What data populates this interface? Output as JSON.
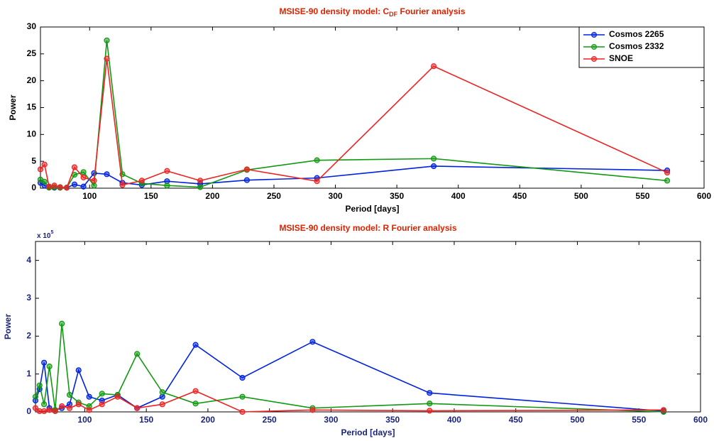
{
  "chart_data": [
    {
      "type": "line",
      "title": "MSISE-90 density model: C",
      "title_sub": "DF",
      "title_end": " Fourier analysis",
      "x_label": "Period [days]",
      "y_label": "Power",
      "x": [
        60,
        63.3,
        67,
        71.3,
        76,
        81.4,
        87.7,
        95,
        103.6,
        114,
        126.7,
        142.5,
        163,
        190,
        228,
        285,
        380,
        570
      ],
      "series": [
        {
          "name": "Cosmos 2265",
          "color": "#0022dd",
          "values": [
            1.0,
            0.5,
            0.2,
            0.1,
            0.1,
            0.1,
            0.7,
            0.3,
            2.8,
            2.6,
            1.0,
            0.6,
            1.3,
            0.8,
            1.5,
            1.9,
            4.1,
            3.3
          ]
        },
        {
          "name": "Cosmos 2332",
          "color": "#119911",
          "values": [
            1.6,
            1.2,
            0.1,
            0.2,
            0.1,
            0.1,
            2.5,
            3.0,
            0.5,
            27.5,
            2.6,
            0.9,
            0.5,
            0.2,
            3.4,
            5.2,
            5.5,
            1.4
          ]
        },
        {
          "name": "SNOE",
          "color": "#ee2222",
          "values": [
            3.5,
            4.4,
            0.3,
            0.5,
            0.2,
            0.1,
            3.9,
            2.0,
            1.4,
            24.1,
            0.6,
            1.4,
            3.2,
            1.4,
            3.5,
            1.3,
            22.7,
            2.9
          ]
        }
      ],
      "xlim": [
        60,
        600
      ],
      "xticks": [
        100,
        150,
        200,
        250,
        300,
        350,
        400,
        450,
        500,
        550,
        600
      ],
      "ylim": [
        0,
        30
      ],
      "yticks": [
        0,
        5,
        10,
        15,
        20,
        25,
        30
      ],
      "legend": "upper-right",
      "grid": false
    },
    {
      "type": "line",
      "title": "MSISE-90 density model: R Fourier analysis",
      "x_label": "Period [days]",
      "y_label": "Power",
      "y_multiplier": "x 10",
      "y_multiplier_exp": "5",
      "x": [
        60,
        63.3,
        67,
        71.3,
        76,
        81.4,
        87.7,
        95,
        103.6,
        114,
        126.7,
        142.5,
        163,
        190,
        228,
        285,
        380,
        570
      ],
      "series": [
        {
          "name": "Cosmos 2265",
          "color": "#0022dd",
          "values": [
            0.3,
            0.6,
            1.3,
            0.1,
            0.05,
            0.1,
            0.2,
            1.1,
            0.4,
            0.3,
            0.45,
            0.1,
            0.4,
            1.77,
            0.9,
            1.85,
            0.5,
            0.02
          ]
        },
        {
          "name": "Cosmos 2332",
          "color": "#119911",
          "values": [
            0.4,
            0.7,
            0.2,
            1.2,
            0.05,
            2.33,
            0.45,
            0.25,
            0.15,
            0.48,
            0.45,
            1.53,
            0.52,
            0.22,
            0.4,
            0.1,
            0.22,
            0
          ]
        },
        {
          "name": "SNOE",
          "color": "#ee2222",
          "values": [
            0.1,
            0.02,
            0.02,
            0.05,
            0.02,
            0.15,
            0.1,
            0.2,
            0.05,
            0.2,
            0.4,
            0.1,
            0.2,
            0.55,
            0,
            0.05,
            0.03,
            0.05
          ]
        }
      ],
      "xlim": [
        60,
        600
      ],
      "xticks": [
        100,
        150,
        200,
        250,
        300,
        350,
        400,
        450,
        500,
        550,
        600
      ],
      "ylim": [
        0,
        4.5
      ],
      "yticks": [
        0,
        1,
        2,
        3,
        4
      ],
      "grid": false
    }
  ]
}
